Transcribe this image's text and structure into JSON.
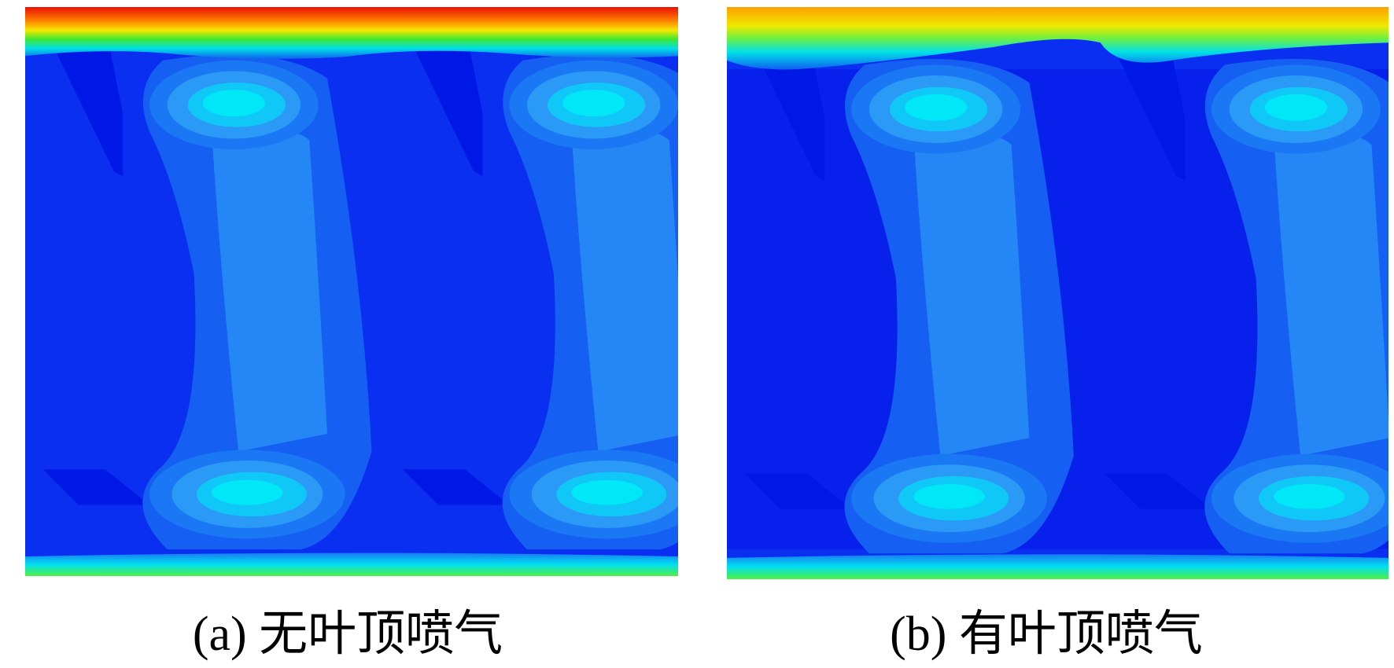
{
  "panels": [
    {
      "caption": "(a) 无叶顶喷气"
    },
    {
      "caption": "(b) 有叶顶喷气"
    }
  ]
}
